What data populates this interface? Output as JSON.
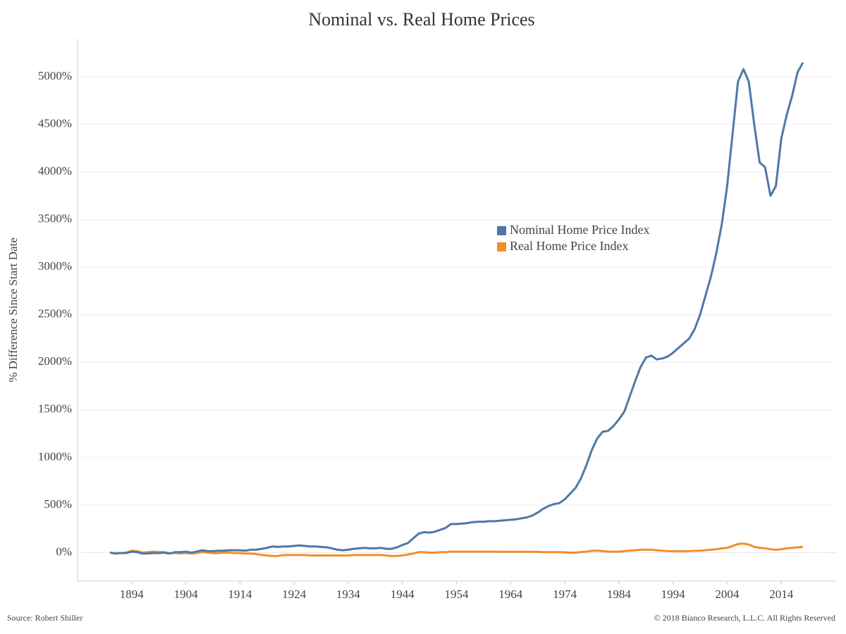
{
  "chart_data": {
    "type": "line",
    "title": "Nominal vs. Real Home Prices",
    "y_label": "% Difference Since Start Date",
    "source": "Source: Robert Shiller",
    "copyright": "© 2018 Bianco Research, L.L.C. All Rights Reserved",
    "x": [
      1890,
      1891,
      1892,
      1893,
      1894,
      1895,
      1896,
      1897,
      1898,
      1899,
      1900,
      1901,
      1902,
      1903,
      1904,
      1905,
      1906,
      1907,
      1908,
      1909,
      1910,
      1911,
      1912,
      1913,
      1914,
      1915,
      1916,
      1917,
      1918,
      1919,
      1920,
      1921,
      1922,
      1923,
      1924,
      1925,
      1926,
      1927,
      1928,
      1929,
      1930,
      1931,
      1932,
      1933,
      1934,
      1935,
      1936,
      1937,
      1938,
      1939,
      1940,
      1941,
      1942,
      1943,
      1944,
      1945,
      1946,
      1947,
      1948,
      1949,
      1950,
      1951,
      1952,
      1953,
      1954,
      1955,
      1956,
      1957,
      1958,
      1959,
      1960,
      1961,
      1962,
      1963,
      1964,
      1965,
      1966,
      1967,
      1968,
      1969,
      1970,
      1971,
      1972,
      1973,
      1974,
      1975,
      1976,
      1977,
      1978,
      1979,
      1980,
      1981,
      1982,
      1983,
      1984,
      1985,
      1986,
      1987,
      1988,
      1989,
      1990,
      1991,
      1992,
      1993,
      1994,
      1995,
      1996,
      1997,
      1998,
      1999,
      2000,
      2001,
      2002,
      2003,
      2004,
      2005,
      2006,
      2007,
      2008,
      2009,
      2010,
      2011,
      2012,
      2013,
      2014,
      2015,
      2016,
      2017,
      2018
    ],
    "series": [
      {
        "name": "Nominal Home Price Index",
        "color": "#4e79a7",
        "values": [
          0,
          -10,
          -5,
          -5,
          10,
          5,
          -10,
          -8,
          -5,
          -5,
          0,
          -10,
          5,
          5,
          10,
          0,
          10,
          25,
          15,
          15,
          20,
          20,
          25,
          25,
          25,
          20,
          30,
          30,
          40,
          50,
          65,
          60,
          65,
          65,
          70,
          75,
          70,
          65,
          65,
          60,
          55,
          45,
          30,
          25,
          30,
          40,
          45,
          50,
          45,
          45,
          50,
          40,
          40,
          55,
          80,
          100,
          150,
          200,
          215,
          210,
          220,
          240,
          260,
          300,
          300,
          305,
          310,
          320,
          325,
          325,
          330,
          330,
          335,
          340,
          345,
          350,
          360,
          370,
          390,
          420,
          460,
          490,
          510,
          520,
          560,
          620,
          680,
          780,
          920,
          1080,
          1200,
          1270,
          1280,
          1330,
          1400,
          1480,
          1640,
          1800,
          1950,
          2050,
          2070,
          2030,
          2040,
          2060,
          2100,
          2150,
          2200,
          2250,
          2350,
          2500,
          2700,
          2900,
          3150,
          3450,
          3850,
          4400,
          4950,
          5080,
          4950,
          4500,
          4100,
          4050,
          3750,
          3850,
          4350,
          4600,
          4800,
          5050,
          5150
        ]
      },
      {
        "name": "Real Home Price Index",
        "color": "#f28e2b",
        "values": [
          0,
          -5,
          -5,
          0,
          20,
          15,
          0,
          5,
          10,
          5,
          5,
          -5,
          -5,
          -10,
          -5,
          -10,
          -5,
          5,
          0,
          -5,
          -5,
          0,
          0,
          -5,
          -5,
          -10,
          -10,
          -15,
          -25,
          -30,
          -35,
          -35,
          -25,
          -25,
          -25,
          -25,
          -25,
          -30,
          -30,
          -30,
          -30,
          -30,
          -30,
          -30,
          -30,
          -25,
          -25,
          -25,
          -25,
          -25,
          -25,
          -30,
          -35,
          -35,
          -30,
          -20,
          -10,
          5,
          5,
          0,
          0,
          5,
          5,
          10,
          10,
          10,
          10,
          10,
          10,
          10,
          10,
          10,
          8,
          8,
          8,
          8,
          8,
          8,
          8,
          8,
          5,
          5,
          5,
          5,
          3,
          0,
          0,
          5,
          10,
          20,
          20,
          15,
          10,
          10,
          10,
          15,
          20,
          25,
          30,
          30,
          30,
          25,
          20,
          15,
          15,
          15,
          15,
          15,
          18,
          20,
          25,
          30,
          35,
          45,
          50,
          70,
          90,
          95,
          85,
          60,
          50,
          45,
          35,
          30,
          35,
          45,
          50,
          55,
          60
        ]
      }
    ],
    "xlim": [
      1884,
      2024
    ],
    "xticks": [
      1894,
      1904,
      1914,
      1924,
      1934,
      1944,
      1954,
      1964,
      1974,
      1984,
      1994,
      2004,
      2014
    ],
    "ylim": [
      -300,
      5400
    ],
    "yticks": [
      {
        "value": 0,
        "label": "0%"
      },
      {
        "value": 500,
        "label": "500%"
      },
      {
        "value": 1000,
        "label": "1000%"
      },
      {
        "value": 1500,
        "label": "1500%"
      },
      {
        "value": 2000,
        "label": "2000%"
      },
      {
        "value": 2500,
        "label": "2500%"
      },
      {
        "value": 3000,
        "label": "3000%"
      },
      {
        "value": 3500,
        "label": "3500%"
      },
      {
        "value": 4000,
        "label": "4000%"
      },
      {
        "value": 4500,
        "label": "4500%"
      },
      {
        "value": 5000,
        "label": "5000%"
      }
    ],
    "grid": true
  }
}
